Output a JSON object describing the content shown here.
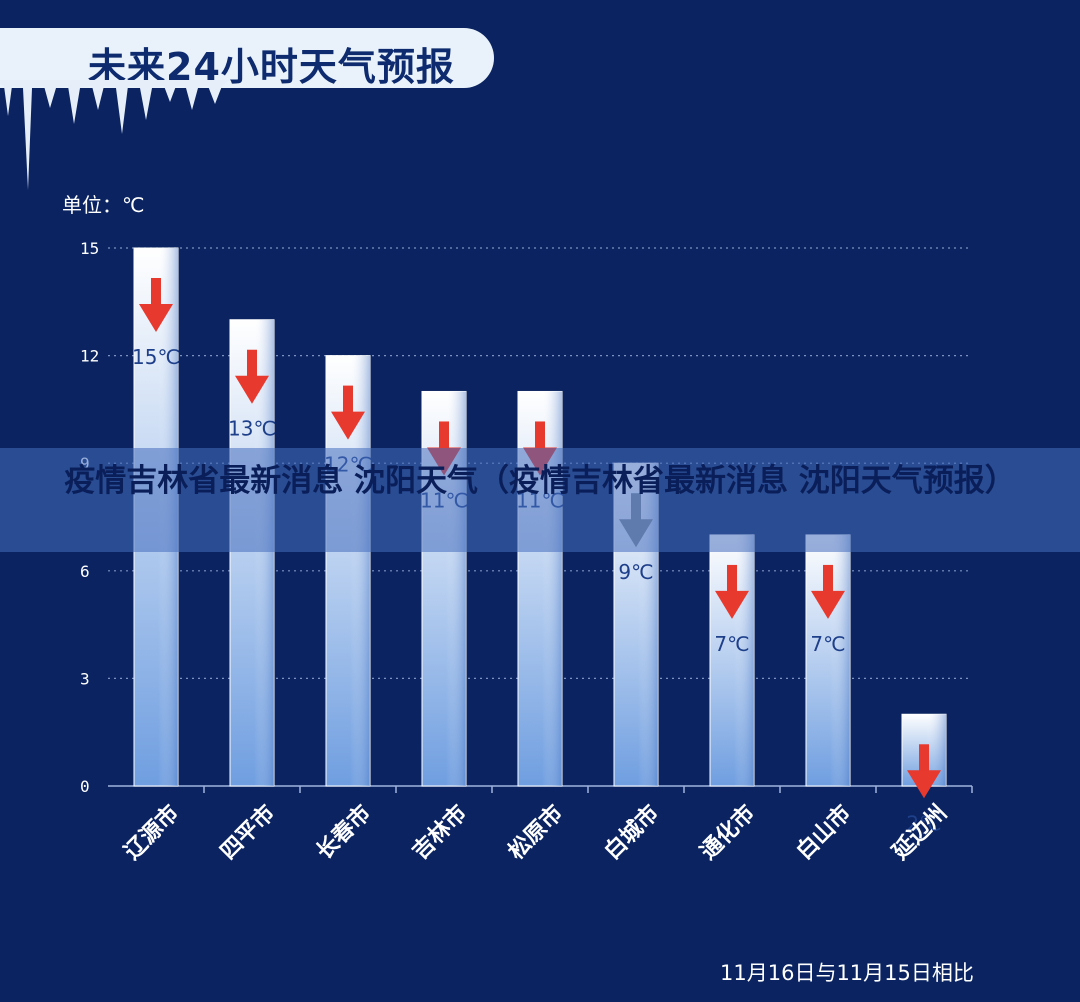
{
  "header": {
    "title": "未来24小时天气预报",
    "unit": "单位：℃"
  },
  "overlay": {
    "text": "疫情吉林省最新消息 沈阳天气（疫情吉林省最新消息 沈阳天气预报）"
  },
  "footnote": "11月16日与11月15日相比",
  "colors": {
    "background": "#0b2461",
    "bar_top": "#ffffff",
    "bar_bottom": "#6f9ee0",
    "arrow": "#e8392e",
    "arrow_muted": "#7f8a99",
    "label": "#1e3f8a",
    "grid": "#7d92c2"
  },
  "chart_data": {
    "type": "bar",
    "categories": [
      "辽源市",
      "四平市",
      "长春市",
      "吉林市",
      "松原市",
      "白城市",
      "通化市",
      "白山市",
      "延边州"
    ],
    "values": [
      15,
      13,
      12,
      11,
      11,
      9,
      7,
      7,
      2
    ],
    "data_labels": [
      "15℃",
      "13℃",
      "12℃",
      "11℃",
      "11℃",
      "9℃",
      "7℃",
      "7℃",
      "2℃"
    ],
    "yticks": [
      0,
      3,
      6,
      9,
      12,
      15
    ],
    "ylim": [
      0,
      15
    ],
    "ylabel": "单位：℃",
    "grid": true,
    "trend": [
      "down",
      "down",
      "down",
      "down",
      "down",
      "down",
      "down",
      "down",
      "down"
    ]
  }
}
